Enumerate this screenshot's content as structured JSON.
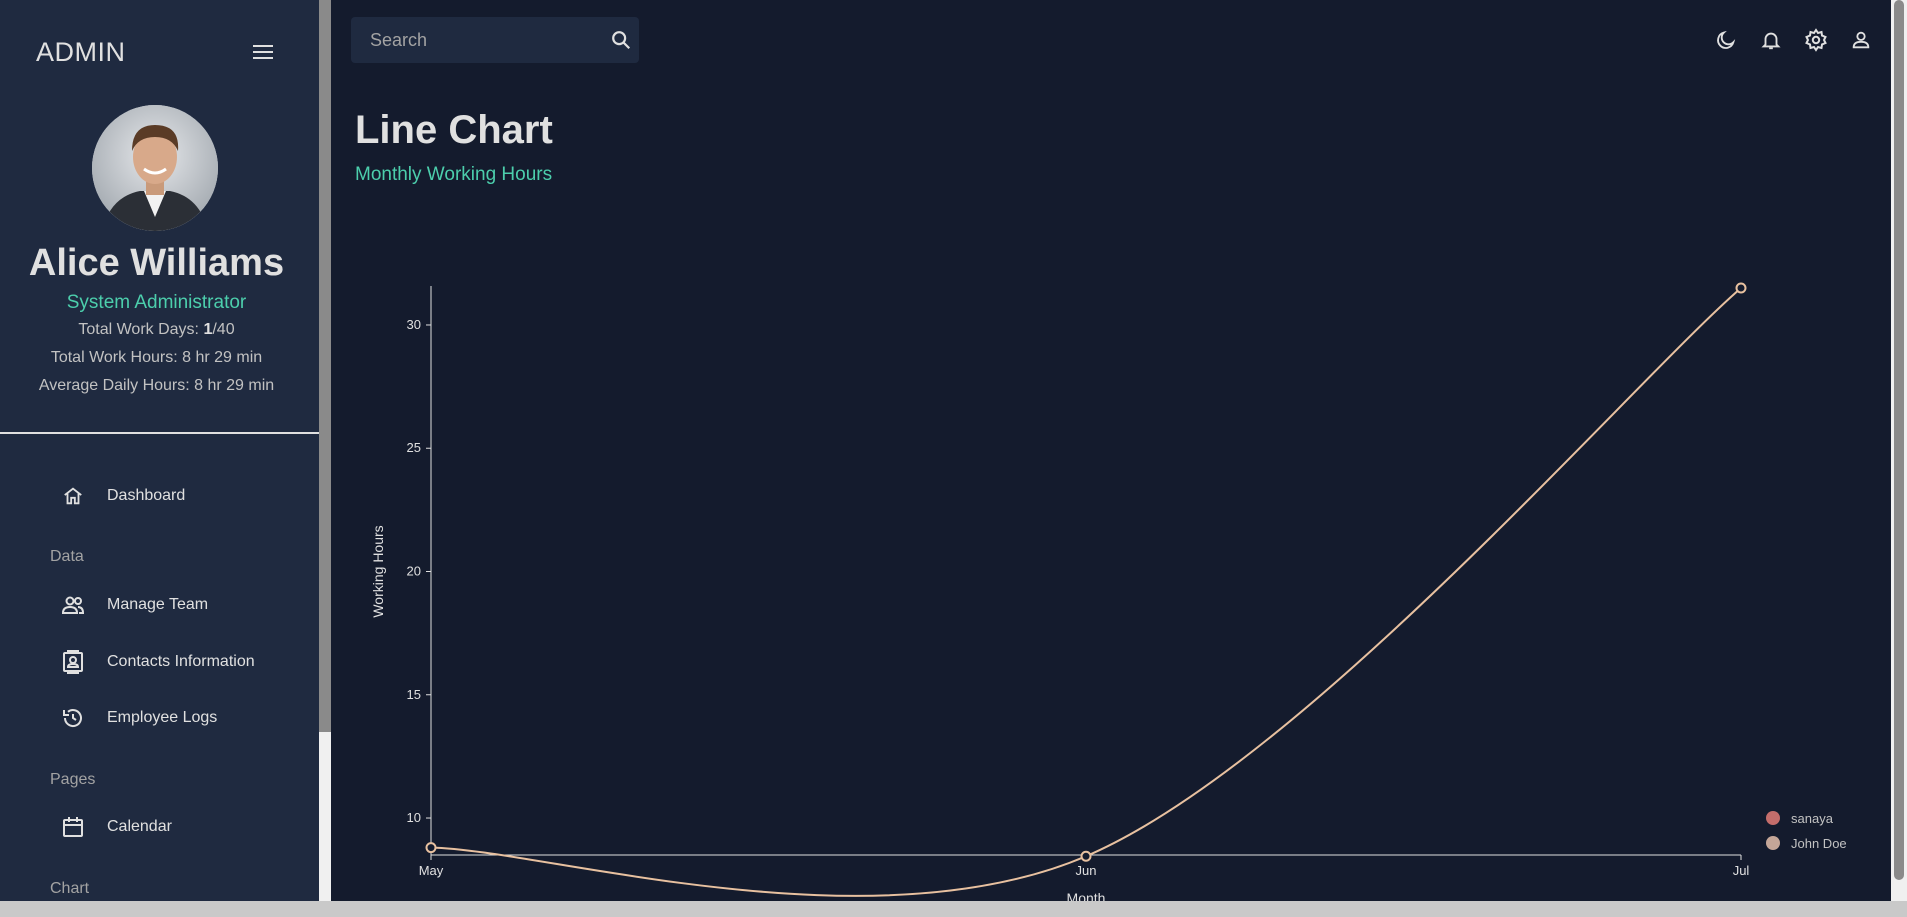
{
  "sidebar": {
    "brand": "ADMIN",
    "user": {
      "name": "Alice Williams",
      "role": "System Administrator",
      "work_days_label": "Total Work Days: ",
      "work_days_value": "1",
      "work_days_total": "/40",
      "work_hours": "Total Work Hours: 8 hr 29 min",
      "avg_hours": "Average Daily Hours: 8 hr 29 min"
    },
    "nav": {
      "dashboard": "Dashboard",
      "section_data": "Data",
      "manage_team": "Manage Team",
      "contacts": "Contacts Information",
      "employee_logs": "Employee Logs",
      "section_pages": "Pages",
      "calendar": "Calendar",
      "section_chart": "Chart"
    }
  },
  "topbar": {
    "search_placeholder": "Search",
    "icons": [
      "moon-icon",
      "bell-icon",
      "gear-icon",
      "person-icon"
    ]
  },
  "header": {
    "title": "Line Chart",
    "subtitle": "Monthly Working Hours"
  },
  "colors": {
    "background": "#141b2d",
    "panel": "#1f2a40",
    "accent": "#4cceac",
    "line": "#e8c1a0",
    "legend_sanaya": "#c46d6b",
    "legend_john": "#c4a698"
  },
  "chart_data": {
    "type": "line",
    "x": [
      "May",
      "Jun",
      "Jul"
    ],
    "series": [
      {
        "name": "sanaya",
        "values": [
          null,
          null,
          null
        ]
      },
      {
        "name": "John Doe",
        "values": [
          8.8,
          8.45,
          31.5
        ]
      }
    ],
    "xlabel": "Month",
    "ylabel": "Working Hours",
    "yticks": [
      10,
      15,
      20,
      25,
      30
    ],
    "ylim": [
      8.5,
      31.5
    ],
    "legend": "bottom-right",
    "grid": false
  }
}
